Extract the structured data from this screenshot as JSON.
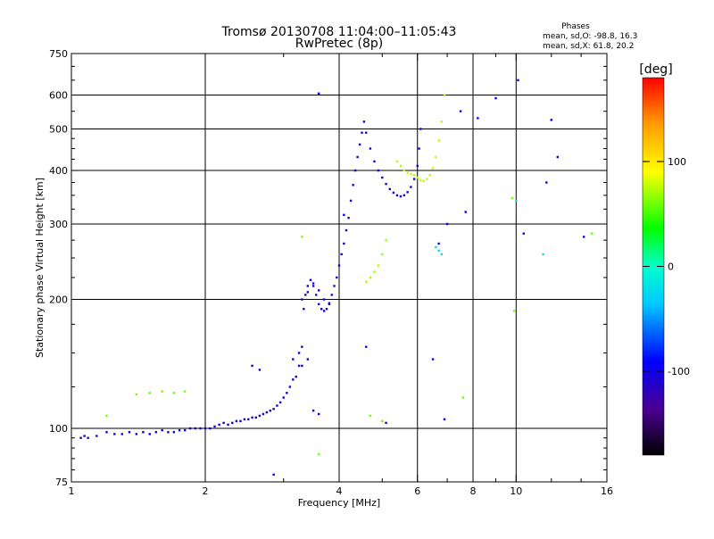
{
  "chart_data": {
    "type": "scatter",
    "title": "Tromsø 20130708 11:04:00–11:05:43",
    "subtitle": "RwPretec (8p)",
    "phase_info": {
      "header": "Phases",
      "line_o": "mean, sd,O: -98.8, 16.3",
      "line_x": "mean, sd,X:  61.8, 20.2"
    },
    "xlabel": "Frequency [MHz]",
    "ylabel": "Stationary phase Virtual Height [km]",
    "x_scale": "log",
    "y_scale": "log",
    "xlim": [
      1,
      16
    ],
    "ylim": [
      75,
      750
    ],
    "x_ticks": [
      {
        "value": 1,
        "label": "1"
      },
      {
        "value": 2,
        "label": "2"
      },
      {
        "value": 4,
        "label": "4"
      },
      {
        "value": 6,
        "label": "6"
      },
      {
        "value": 8,
        "label": "8"
      },
      {
        "value": 10,
        "label": "10"
      },
      {
        "value": 16,
        "label": "16"
      }
    ],
    "y_ticks": [
      {
        "value": 75,
        "label": "75"
      },
      {
        "value": 100,
        "label": "100"
      },
      {
        "value": 200,
        "label": "200"
      },
      {
        "value": 300,
        "label": "300"
      },
      {
        "value": 400,
        "label": "400"
      },
      {
        "value": 500,
        "label": "500"
      },
      {
        "value": 600,
        "label": "600"
      },
      {
        "value": 750,
        "label": "750"
      }
    ],
    "x_gridlines": [
      2,
      4,
      6,
      8,
      10
    ],
    "y_gridlines": [
      100,
      200,
      300,
      400,
      500,
      600
    ],
    "colorbar": {
      "label": "[deg]",
      "range": [
        -180,
        180
      ],
      "ticks": [
        {
          "value": 100,
          "label": "100"
        },
        {
          "value": 0,
          "label": "0"
        },
        {
          "value": -100,
          "label": "-100"
        }
      ]
    },
    "series": [
      {
        "mode": "O",
        "phase_deg": -100,
        "x": [
          1.05,
          1.07,
          1.09,
          1.14,
          1.2,
          1.25,
          1.3,
          1.35,
          1.4,
          1.45,
          1.5,
          1.55,
          1.6,
          1.65,
          1.7,
          1.75,
          1.8,
          1.85,
          1.9,
          1.95,
          2.0,
          2.05,
          2.1,
          2.15,
          2.2,
          2.25,
          2.3,
          2.35,
          2.4,
          2.45,
          2.5,
          2.55,
          2.6,
          2.65,
          2.7,
          2.75,
          2.8,
          2.85,
          2.9,
          2.95,
          3.0,
          3.05,
          3.1,
          3.15
        ],
        "y": [
          95,
          96,
          95,
          96,
          98,
          97,
          97,
          98,
          97,
          98,
          97,
          98,
          99,
          98,
          98,
          99,
          99,
          100,
          100,
          100,
          100,
          100,
          101,
          102,
          103,
          102,
          103,
          104,
          104,
          105,
          105,
          106,
          106,
          107,
          108,
          109,
          110,
          111,
          113,
          115,
          118,
          121,
          125,
          130
        ]
      },
      {
        "mode": "O",
        "phase_deg": -105,
        "x": [
          3.2,
          3.25,
          3.3,
          3.33,
          3.36,
          3.4,
          3.45,
          3.5,
          3.55,
          3.6,
          3.65,
          3.7,
          3.75,
          3.8,
          3.85,
          3.9,
          3.95,
          4.0,
          4.05,
          4.1,
          4.15,
          4.2,
          4.25,
          4.3,
          4.35,
          4.4,
          4.45,
          4.5,
          4.55
        ],
        "y": [
          132,
          140,
          155,
          190,
          205,
          215,
          222,
          218,
          205,
          195,
          190,
          188,
          190,
          196,
          205,
          215,
          225,
          240,
          255,
          270,
          290,
          310,
          340,
          370,
          400,
          430,
          460,
          490,
          520
        ]
      },
      {
        "mode": "O",
        "phase_deg": -100,
        "x": [
          4.6,
          4.7,
          4.8,
          4.9,
          5.0,
          5.1,
          5.2,
          5.3,
          5.4,
          5.5,
          5.6,
          5.7,
          5.8,
          5.9,
          6.0,
          6.05,
          6.1
        ],
        "y": [
          490,
          450,
          420,
          400,
          385,
          372,
          362,
          355,
          350,
          348,
          350,
          356,
          366,
          382,
          410,
          450,
          500
        ]
      },
      {
        "mode": "O",
        "phase_deg": -110,
        "x": [
          3.3,
          3.4,
          3.5,
          3.6,
          3.7,
          3.8
        ],
        "y": [
          200,
          208,
          215,
          210,
          200,
          195
        ]
      },
      {
        "mode": "X",
        "phase_deg": 70,
        "x": [
          4.6,
          4.7,
          4.8,
          4.9,
          5.0,
          5.1
        ],
        "y": [
          220,
          225,
          232,
          240,
          255,
          275
        ]
      },
      {
        "mode": "X",
        "phase_deg": 75,
        "x": [
          5.4,
          5.5,
          5.6,
          5.7,
          5.8,
          5.9,
          6.0,
          6.1,
          6.2,
          6.3,
          6.4,
          6.5,
          6.6,
          6.7,
          6.8,
          6.9
        ],
        "y": [
          420,
          410,
          400,
          395,
          392,
          390,
          385,
          380,
          378,
          382,
          390,
          405,
          430,
          470,
          520,
          600
        ]
      },
      {
        "mode": "O",
        "phase_deg": -95,
        "x": [
          2.55,
          2.65,
          3.15,
          3.25,
          3.3,
          3.4,
          3.5,
          3.6
        ],
        "y": [
          140,
          137,
          145,
          150,
          140,
          145,
          110,
          108
        ]
      },
      {
        "mode": "X",
        "phase_deg": 60,
        "x": [
          1.2,
          1.4,
          1.5,
          1.6,
          1.7,
          1.8,
          3.3,
          3.6,
          4.7,
          5.0,
          7.6,
          9.8,
          9.9,
          14.8
        ],
        "y": [
          107,
          120,
          121,
          122,
          121,
          122,
          280,
          87,
          107,
          104,
          118,
          345,
          188,
          285
        ]
      },
      {
        "mode": "O",
        "phase_deg": -90,
        "x": [
          3.6,
          4.1,
          4.6,
          5.1,
          6.5,
          6.7,
          6.9,
          7.0,
          7.5,
          7.7,
          8.2,
          9.0,
          10.1,
          10.4,
          11.7,
          12.0,
          12.4,
          14.2,
          2.85
        ],
        "y": [
          605,
          315,
          155,
          103,
          145,
          270,
          105,
          300,
          550,
          320,
          530,
          590,
          650,
          285,
          375,
          525,
          430,
          280,
          78
        ]
      },
      {
        "mode": "O",
        "phase_deg": -20,
        "x": [
          6.6,
          6.7,
          6.8,
          10.0,
          11.5
        ],
        "y": [
          265,
          260,
          255,
          340,
          255
        ]
      }
    ]
  }
}
